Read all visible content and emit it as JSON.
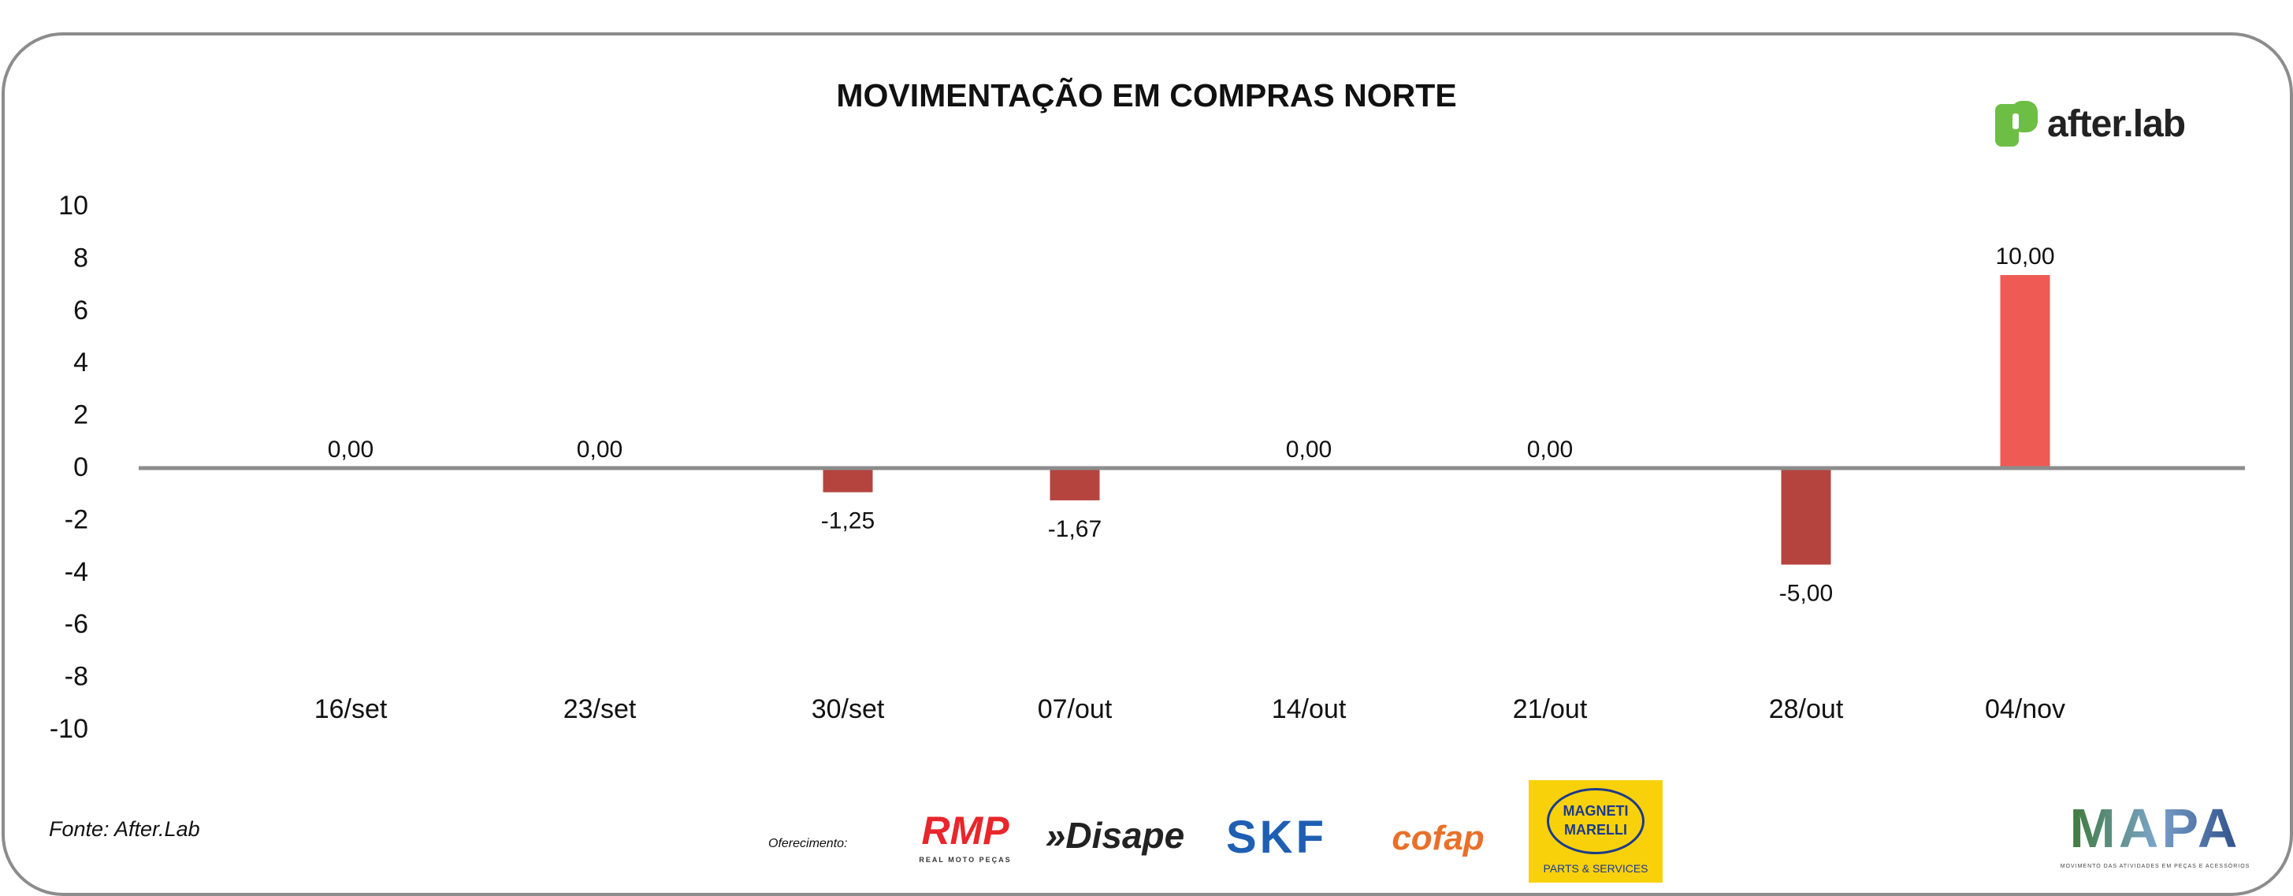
{
  "chart_data": {
    "type": "bar",
    "title": "MOVIMENTAÇÃO EM COMPRAS NORTE",
    "xlabel": "",
    "ylabel": "",
    "ylim": [
      -10,
      10
    ],
    "yticks": [
      "10",
      "8",
      "6",
      "4",
      "2",
      "0",
      "-2",
      "-4",
      "-6",
      "-8",
      "-10"
    ],
    "ytick_values": [
      10,
      8,
      6,
      4,
      2,
      0,
      -2,
      -4,
      -6,
      -8,
      -10
    ],
    "categories": [
      "16/set",
      "23/set",
      "30/set",
      "07/out",
      "14/out",
      "21/out",
      "28/out",
      "04/nov"
    ],
    "values": [
      0,
      0,
      -1.25,
      -1.67,
      0,
      0,
      -5,
      10
    ],
    "data_labels": [
      "0,00",
      "0,00",
      "-1,25",
      "-1,67",
      "0,00",
      "0,00",
      "-5,00",
      "10,00"
    ],
    "grid": false,
    "legend": "none",
    "colors": {
      "negative": "#B5443F",
      "positive": "#EF5A55",
      "axis": "#8C8C8C"
    }
  },
  "brand": {
    "name": "after.lab",
    "color": "#6DBE45"
  },
  "footer": {
    "source": "Fonte: After.Lab",
    "offer_label": "Oferecimento:",
    "sponsors": {
      "rmp": "RMP",
      "rmp_sub": "REAL MOTO PEÇAS",
      "disape": "»Disape",
      "skf": "SKF",
      "cofap": "cofap",
      "magneti": "MAGNETI MARELLI",
      "magneti_sub": "PARTS & SERVICES",
      "mapa": "MAPA",
      "mapa_sub": "MOVIMENTO DAS ATIVIDADES EM PEÇAS E ACESSÓRIOS"
    }
  }
}
